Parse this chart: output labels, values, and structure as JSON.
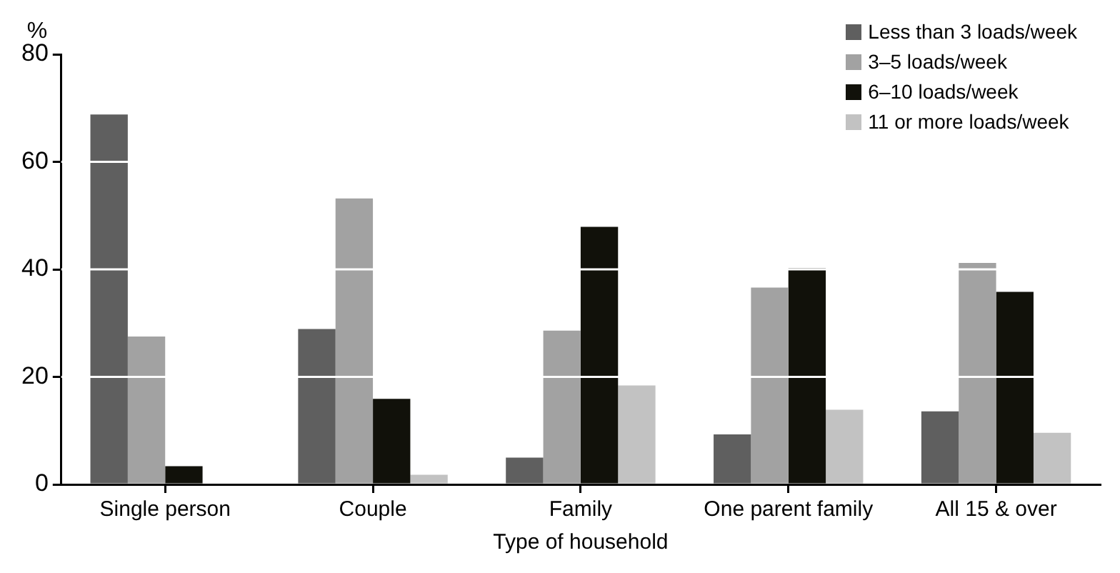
{
  "chart_data": {
    "type": "bar",
    "ylabel": "%",
    "xlabel": "Type of household",
    "categories": [
      "Single person",
      "Couple",
      "Family",
      "One parent family",
      "All 15 & over"
    ],
    "series": [
      {
        "name": "Less than 3 loads/week",
        "color": "#5f5f5f",
        "values": [
          68.8,
          28.9,
          5.0,
          9.3,
          13.6
        ]
      },
      {
        "name": "3–5 loads/week",
        "color": "#a2a2a2",
        "values": [
          27.5,
          53.2,
          28.6,
          36.6,
          41.2
        ]
      },
      {
        "name": "6–10 loads/week",
        "color": "#11110a",
        "values": [
          3.4,
          15.9,
          47.9,
          40.2,
          35.8
        ]
      },
      {
        "name": "11 or more loads/week",
        "color": "#c2c2c2",
        "values": [
          null,
          1.8,
          18.4,
          13.9,
          9.6
        ]
      }
    ],
    "ylim": [
      0,
      80
    ],
    "yticks": [
      0,
      20,
      40,
      60,
      80
    ],
    "grid": "y",
    "legend": "top right"
  }
}
